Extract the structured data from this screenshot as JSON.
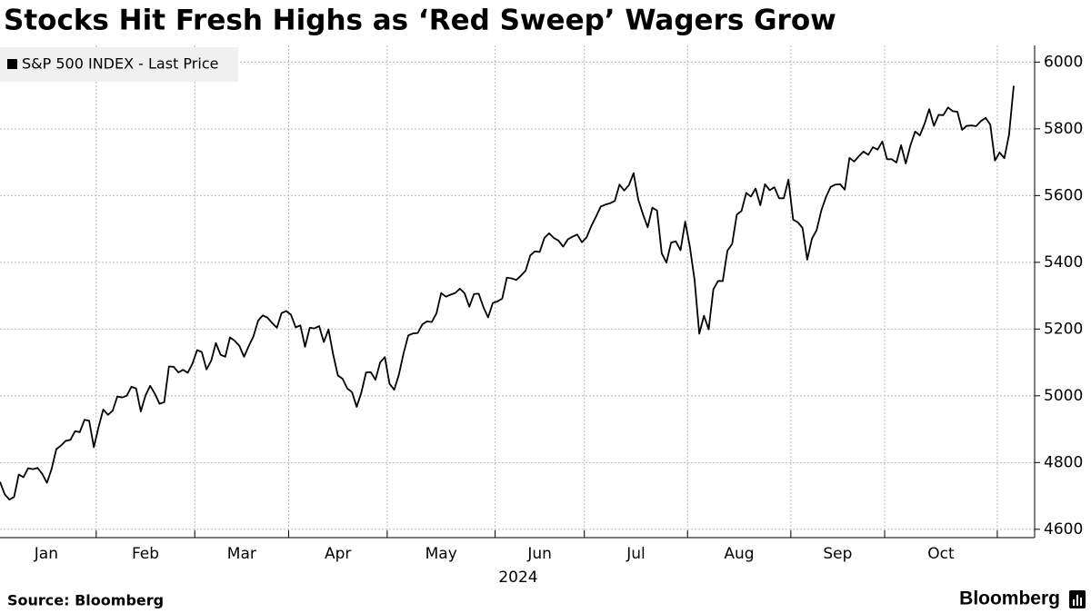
{
  "chart_data": {
    "type": "line",
    "title": "Stocks Hit Fresh Highs as ‘Red Sweep’ Wagers Grow",
    "xlabel": "2024",
    "source": "Source: Bloomberg",
    "brand": "Bloomberg",
    "categories": [
      "Jan",
      "Feb",
      "Mar",
      "Apr",
      "May",
      "Jun",
      "Jul",
      "Aug",
      "Sep",
      "Oct",
      null
    ],
    "series": [
      {
        "name": "S&P 500 INDEX - Last Price",
        "color": "#000000",
        "values": [
          [
            4742,
            4705,
            4689,
            4697,
            4764,
            4756,
            4783,
            4780,
            4784,
            4766,
            4739,
            4781,
            4840,
            4851,
            4865,
            4868,
            4894,
            4891,
            4928,
            4925,
            4846
          ],
          [
            4906,
            4959,
            4943,
            4955,
            4998,
            4995,
            5000,
            5027,
            5022,
            4953,
            5001,
            5030,
            5006,
            4976,
            4981,
            5088,
            5087,
            5070,
            5078,
            5069,
            5096
          ],
          [
            5137,
            5131,
            5079,
            5105,
            5158,
            5123,
            5117,
            5175,
            5165,
            5150,
            5117,
            5149,
            5178,
            5225,
            5241,
            5234,
            5218,
            5204,
            5248,
            5254
          ],
          [
            5243,
            5205,
            5211,
            5147,
            5204,
            5202,
            5209,
            5161,
            5199,
            5123,
            5061,
            5051,
            5022,
            5011,
            4967,
            5010,
            5070,
            5071,
            5048,
            5100,
            5116
          ],
          [
            5036,
            5018,
            5064,
            5128,
            5181,
            5187,
            5188,
            5214,
            5223,
            5221,
            5247,
            5308,
            5297,
            5303,
            5308,
            5321,
            5307,
            5267,
            5305,
            5306,
            5266,
            5235,
            5278
          ],
          [
            5283,
            5291,
            5354,
            5352,
            5347,
            5360,
            5375,
            5421,
            5433,
            5431,
            5473,
            5487,
            5473,
            5465,
            5447,
            5469,
            5477,
            5483,
            5460
          ],
          [
            5475,
            5509,
            5537,
            5567,
            5573,
            5577,
            5584,
            5633,
            5615,
            5631,
            5667,
            5588,
            5544,
            5505,
            5564,
            5555,
            5427,
            5399,
            5459,
            5463,
            5436,
            5522
          ],
          [
            5446,
            5347,
            5186,
            5240,
            5199,
            5319,
            5344,
            5344,
            5435,
            5455,
            5543,
            5554,
            5608,
            5597,
            5621,
            5571,
            5634,
            5616,
            5625,
            5592,
            5592,
            5648
          ],
          [
            5528,
            5520,
            5503,
            5408,
            5471,
            5496,
            5555,
            5596,
            5626,
            5633,
            5634,
            5618,
            5713,
            5702,
            5718,
            5732,
            5722,
            5745,
            5738,
            5762
          ],
          [
            5709,
            5709,
            5699,
            5751,
            5696,
            5751,
            5792,
            5780,
            5815,
            5859,
            5809,
            5842,
            5841,
            5864,
            5853,
            5851,
            5797,
            5809,
            5810,
            5808,
            5823,
            5833,
            5813,
            5705
          ],
          [
            5729,
            5712,
            5782,
            5929
          ]
        ]
      }
    ],
    "ylim": [
      4575,
      6050
    ],
    "yticks": [
      4600,
      4800,
      5000,
      5200,
      5400,
      5600,
      5800,
      6000
    ],
    "grid": true,
    "legend": "top-left"
  }
}
